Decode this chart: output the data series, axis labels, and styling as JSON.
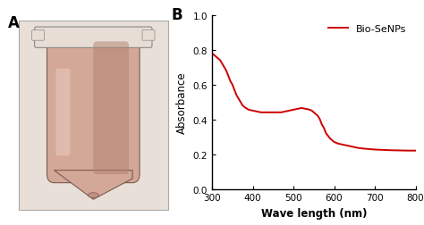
{
  "title_left": "A",
  "title_right": "B",
  "xlabel": "Wave length (nm)",
  "ylabel": "Absorbance",
  "xlim": [
    300,
    800
  ],
  "ylim": [
    0.0,
    1.0
  ],
  "xticks": [
    300,
    400,
    500,
    600,
    700,
    800
  ],
  "yticks": [
    0.0,
    0.2,
    0.4,
    0.6,
    0.8,
    1.0
  ],
  "legend_label": "Bio-SeNPs",
  "line_color": "#cc0000",
  "background_color": "#ffffff",
  "photo_bg": "#e8e0d8",
  "tube_body_color": "#d4a898",
  "tube_shadow": "#b08070",
  "tube_cap_color": "#e8ddd5",
  "curve_x": [
    300,
    305,
    310,
    315,
    320,
    325,
    330,
    335,
    340,
    345,
    350,
    355,
    360,
    365,
    370,
    375,
    380,
    390,
    400,
    410,
    420,
    430,
    440,
    450,
    460,
    470,
    480,
    490,
    500,
    510,
    520,
    530,
    535,
    540,
    545,
    550,
    555,
    560,
    565,
    570,
    575,
    580,
    590,
    600,
    610,
    620,
    630,
    640,
    650,
    660,
    670,
    680,
    690,
    700,
    720,
    740,
    760,
    780,
    800
  ],
  "curve_y": [
    0.78,
    0.77,
    0.76,
    0.75,
    0.74,
    0.72,
    0.7,
    0.68,
    0.65,
    0.62,
    0.6,
    0.57,
    0.54,
    0.52,
    0.5,
    0.48,
    0.47,
    0.455,
    0.45,
    0.445,
    0.44,
    0.44,
    0.44,
    0.44,
    0.44,
    0.44,
    0.445,
    0.45,
    0.455,
    0.46,
    0.465,
    0.46,
    0.458,
    0.455,
    0.45,
    0.44,
    0.43,
    0.42,
    0.4,
    0.37,
    0.35,
    0.32,
    0.29,
    0.27,
    0.26,
    0.255,
    0.25,
    0.245,
    0.24,
    0.235,
    0.232,
    0.23,
    0.228,
    0.226,
    0.224,
    0.222,
    0.221,
    0.22,
    0.22
  ]
}
